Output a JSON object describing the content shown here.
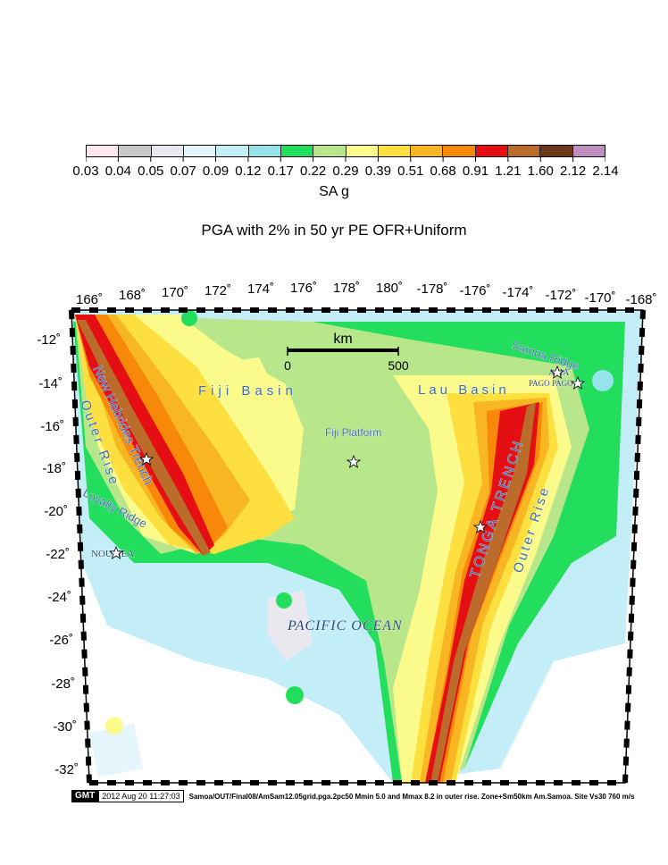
{
  "colorbar": {
    "colors": [
      "#fde7ee",
      "#c8c8c8",
      "#e8e8ee",
      "#e4f6fb",
      "#c3eef7",
      "#96e3ea",
      "#22de5c",
      "#b8e68a",
      "#fbfb8c",
      "#fde040",
      "#f7b622",
      "#f7880a",
      "#e50e12",
      "#bb6b2a",
      "#6b3a1a",
      "#bd8ec0"
    ],
    "labels": [
      "0.03",
      "0.04",
      "0.05",
      "0.07",
      "0.09",
      "0.12",
      "0.17",
      "0.22",
      "0.29",
      "0.39",
      "0.51",
      "0.68",
      "0.91",
      "1.21",
      "1.60",
      "2.12",
      "2.14"
    ],
    "unit": "SA g"
  },
  "title": "PGA with 2% in 50 yr PE OFR+Uniform",
  "map": {
    "lon_ticks": [
      "166˚",
      "168˚",
      "170˚",
      "172˚",
      "174˚",
      "176˚",
      "178˚",
      "180˚",
      "-178˚",
      "-176˚",
      "-174˚",
      "-172˚",
      "-170˚",
      "-168˚"
    ],
    "lat_ticks": [
      "-12˚",
      "-14˚",
      "-16˚",
      "-18˚",
      "-20˚",
      "-22˚",
      "-24˚",
      "-26˚",
      "-28˚",
      "-30˚",
      "-32˚"
    ],
    "scale_bar": {
      "unit": "km",
      "start": "0",
      "end": "500"
    },
    "labels": {
      "fiji_basin": "Fiji Basin",
      "lau_basin": "Lau Basin",
      "samoa_ridge": "Samoa Ridge",
      "fiji_platform": "Fiji Platform",
      "new_hebrides_trench": "New Hebrides Trench",
      "outer_rise_west": "Outer Rise",
      "loyalty_ridge": "Loyalty Ridge",
      "noumea": "NOUMEA",
      "apia": "APIA",
      "pago_pago": "PAGO PAGO",
      "tonga_trench": "TONGA TRENCH",
      "outer_rise_east": "Outer Rise",
      "pacific_ocean": "PACIFIC OCEAN"
    }
  },
  "footer": {
    "logo": "GMT",
    "timestamp": "2012 Aug 20 11:27:03",
    "command": "Samoa/OUT/Final08/AmSam12.05grid.pga.2pc50 Mmin 5.0 and Mmax 8.2 in outer rise. Zone+Sm50km Am.Samoa. Site Vs30 760 m/s"
  }
}
